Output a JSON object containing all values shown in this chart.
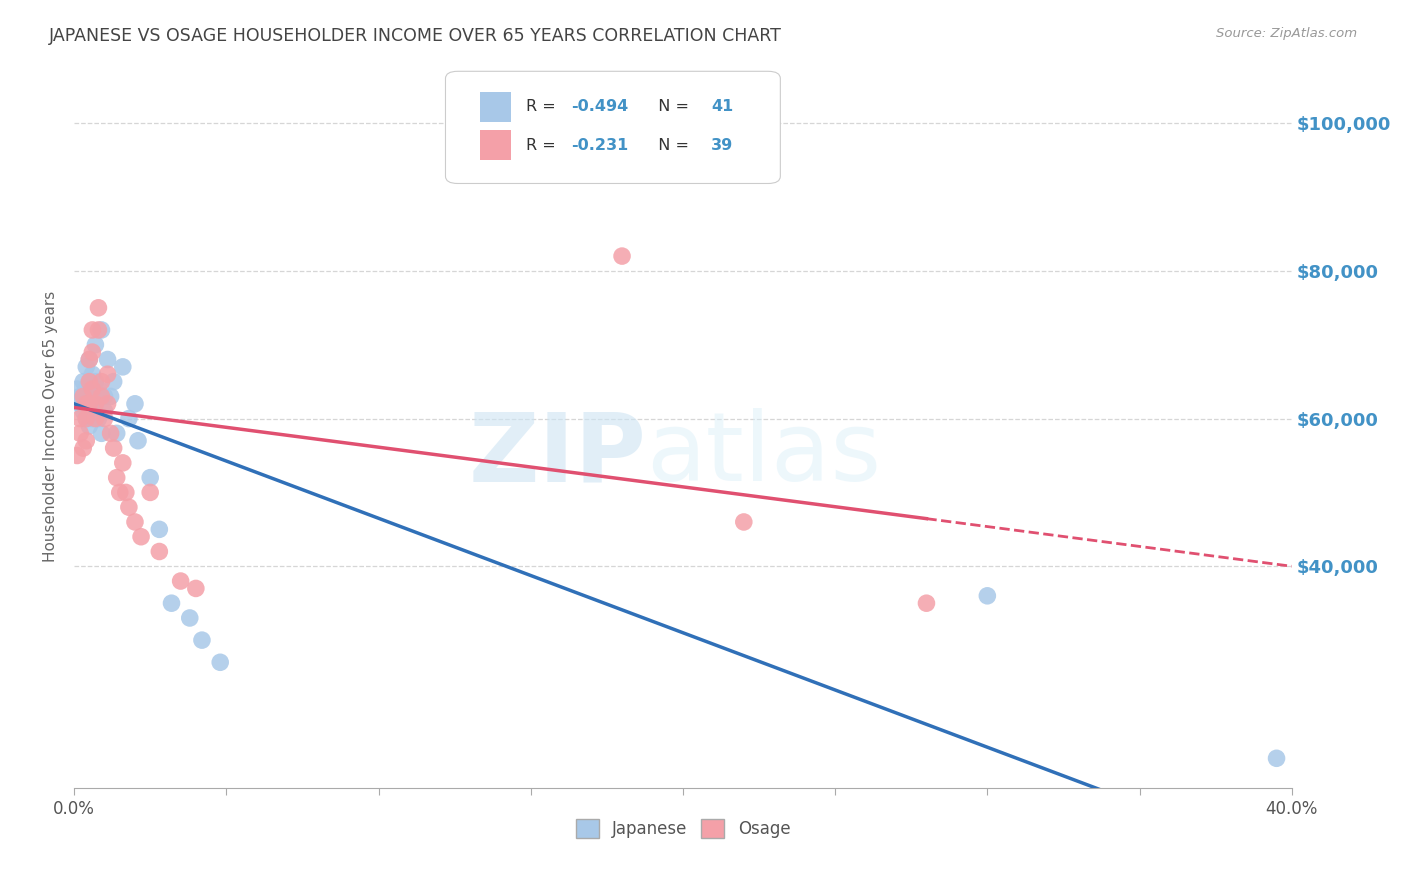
{
  "title": "JAPANESE VS OSAGE HOUSEHOLDER INCOME OVER 65 YEARS CORRELATION CHART",
  "source": "Source: ZipAtlas.com",
  "ylabel": "Householder Income Over 65 years",
  "watermark_zip": "ZIP",
  "watermark_atlas": "atlas",
  "legend_blue_r": "-0.494",
  "legend_blue_n": "41",
  "legend_pink_r": "-0.231",
  "legend_pink_n": "39",
  "y_ticks": [
    40000,
    60000,
    80000,
    100000
  ],
  "y_tick_labels": [
    "$40,000",
    "$60,000",
    "$80,000",
    "$100,000"
  ],
  "x_min": 0.0,
  "x_max": 0.4,
  "y_min": 10000,
  "y_max": 108000,
  "blue_color": "#a8c8e8",
  "pink_color": "#f4a0a8",
  "blue_line_color": "#3070b8",
  "pink_line_color": "#e05070",
  "background_color": "#ffffff",
  "grid_color": "#cccccc",
  "title_color": "#444444",
  "axis_value_color": "#4292c6",
  "japanese_x": [
    0.001,
    0.002,
    0.002,
    0.003,
    0.003,
    0.003,
    0.004,
    0.004,
    0.004,
    0.005,
    0.005,
    0.005,
    0.005,
    0.006,
    0.006,
    0.006,
    0.007,
    0.007,
    0.007,
    0.008,
    0.008,
    0.009,
    0.009,
    0.01,
    0.01,
    0.011,
    0.012,
    0.013,
    0.014,
    0.016,
    0.018,
    0.02,
    0.021,
    0.025,
    0.028,
    0.032,
    0.038,
    0.042,
    0.048,
    0.3,
    0.395
  ],
  "japanese_y": [
    64000,
    63000,
    62000,
    65000,
    63000,
    61000,
    67000,
    64000,
    60000,
    68000,
    65000,
    62000,
    59000,
    66000,
    63000,
    60000,
    70000,
    65000,
    62000,
    64000,
    60000,
    58000,
    72000,
    63000,
    61000,
    68000,
    63000,
    65000,
    58000,
    67000,
    60000,
    62000,
    57000,
    52000,
    45000,
    35000,
    33000,
    30000,
    27000,
    36000,
    14000
  ],
  "osage_x": [
    0.001,
    0.002,
    0.002,
    0.003,
    0.003,
    0.004,
    0.004,
    0.004,
    0.005,
    0.005,
    0.005,
    0.006,
    0.006,
    0.006,
    0.007,
    0.007,
    0.008,
    0.008,
    0.009,
    0.009,
    0.01,
    0.011,
    0.011,
    0.012,
    0.013,
    0.014,
    0.015,
    0.016,
    0.017,
    0.018,
    0.02,
    0.022,
    0.025,
    0.028,
    0.035,
    0.04,
    0.18,
    0.22,
    0.28
  ],
  "osage_y": [
    55000,
    60000,
    58000,
    56000,
    63000,
    62000,
    60000,
    57000,
    68000,
    65000,
    62000,
    72000,
    69000,
    64000,
    62000,
    60000,
    75000,
    72000,
    65000,
    63000,
    60000,
    66000,
    62000,
    58000,
    56000,
    52000,
    50000,
    54000,
    50000,
    48000,
    46000,
    44000,
    50000,
    42000,
    38000,
    37000,
    82000,
    46000,
    35000
  ]
}
